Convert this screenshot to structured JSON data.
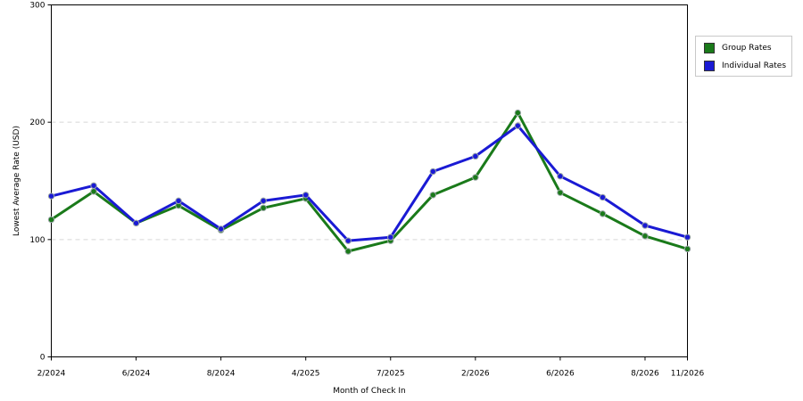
{
  "chart_data": {
    "type": "line",
    "xlabel": "Month of Check In",
    "ylabel": "Lowest Average Rate (USD)",
    "ylim": [
      0,
      300
    ],
    "yticks": [
      0,
      100,
      200,
      300
    ],
    "grid": true,
    "legend_position": "top-right",
    "x_tick_labels": [
      "2/2024",
      "6/2024",
      "8/2024",
      "4/2025",
      "7/2025",
      "2/2026",
      "6/2026",
      "8/2026",
      "11/2026"
    ],
    "series": [
      {
        "name": "Group Rates",
        "color": "#1a7a1a",
        "values": [
          117,
          141,
          114,
          129,
          108,
          127,
          135,
          90,
          99,
          138,
          153,
          208,
          140,
          122,
          103,
          92
        ]
      },
      {
        "name": "Individual Rates",
        "color": "#1a1ad4",
        "values": [
          137,
          146,
          114,
          133,
          109,
          133,
          138,
          99,
          102,
          158,
          171,
          197,
          154,
          136,
          112,
          102
        ]
      }
    ]
  }
}
